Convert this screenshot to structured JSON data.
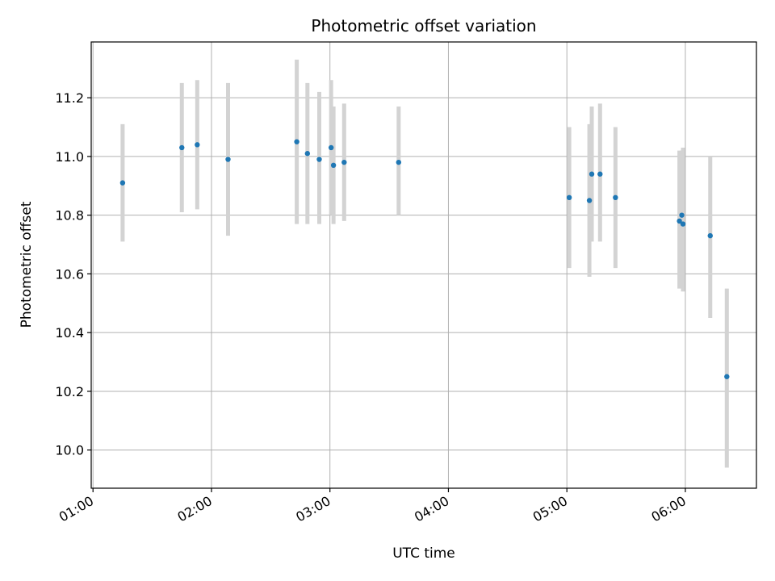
{
  "chart_data": {
    "type": "scatter",
    "title": "Photometric offset variation",
    "xlabel": "UTC time",
    "ylabel": "Photometric offset",
    "x_tick_labels": [
      "01:00",
      "02:00",
      "03:00",
      "04:00",
      "05:00",
      "06:00"
    ],
    "x_tick_hours": [
      1,
      2,
      3,
      4,
      5,
      6
    ],
    "xlim_hours": [
      0.985,
      6.6
    ],
    "y_ticks": [
      "10.0",
      "10.2",
      "10.4",
      "10.6",
      "10.8",
      "11.0",
      "11.2"
    ],
    "ylim": [
      9.87,
      11.39
    ],
    "grid": true,
    "colors": {
      "points": "#1f77b4",
      "errorbars": "#d3d3d3",
      "grid": "#b0b0b0"
    },
    "points": [
      {
        "t": 1.25,
        "y": 10.91,
        "lo": 10.71,
        "hi": 11.11
      },
      {
        "t": 1.75,
        "y": 11.03,
        "lo": 10.81,
        "hi": 11.25
      },
      {
        "t": 1.88,
        "y": 11.04,
        "lo": 10.82,
        "hi": 11.26
      },
      {
        "t": 2.14,
        "y": 10.99,
        "lo": 10.73,
        "hi": 11.25
      },
      {
        "t": 2.72,
        "y": 11.05,
        "lo": 10.77,
        "hi": 11.33
      },
      {
        "t": 2.81,
        "y": 11.01,
        "lo": 10.77,
        "hi": 11.25
      },
      {
        "t": 2.91,
        "y": 10.99,
        "lo": 10.77,
        "hi": 11.22
      },
      {
        "t": 3.01,
        "y": 11.03,
        "lo": 10.8,
        "hi": 11.26
      },
      {
        "t": 3.03,
        "y": 10.97,
        "lo": 10.77,
        "hi": 11.17
      },
      {
        "t": 3.12,
        "y": 10.98,
        "lo": 10.78,
        "hi": 11.18
      },
      {
        "t": 3.58,
        "y": 10.98,
        "lo": 10.8,
        "hi": 11.17
      },
      {
        "t": 5.02,
        "y": 10.86,
        "lo": 10.62,
        "hi": 11.1
      },
      {
        "t": 5.19,
        "y": 10.85,
        "lo": 10.59,
        "hi": 11.11
      },
      {
        "t": 5.21,
        "y": 10.94,
        "lo": 10.71,
        "hi": 11.17
      },
      {
        "t": 5.28,
        "y": 10.94,
        "lo": 10.71,
        "hi": 11.18
      },
      {
        "t": 5.41,
        "y": 10.86,
        "lo": 10.62,
        "hi": 11.1
      },
      {
        "t": 5.95,
        "y": 10.78,
        "lo": 10.55,
        "hi": 11.02
      },
      {
        "t": 5.97,
        "y": 10.8,
        "lo": 10.57,
        "hi": 11.02
      },
      {
        "t": 5.98,
        "y": 10.77,
        "lo": 10.54,
        "hi": 11.03
      },
      {
        "t": 6.21,
        "y": 10.73,
        "lo": 10.45,
        "hi": 11.0
      },
      {
        "t": 6.35,
        "y": 10.25,
        "lo": 9.94,
        "hi": 10.55
      }
    ]
  }
}
